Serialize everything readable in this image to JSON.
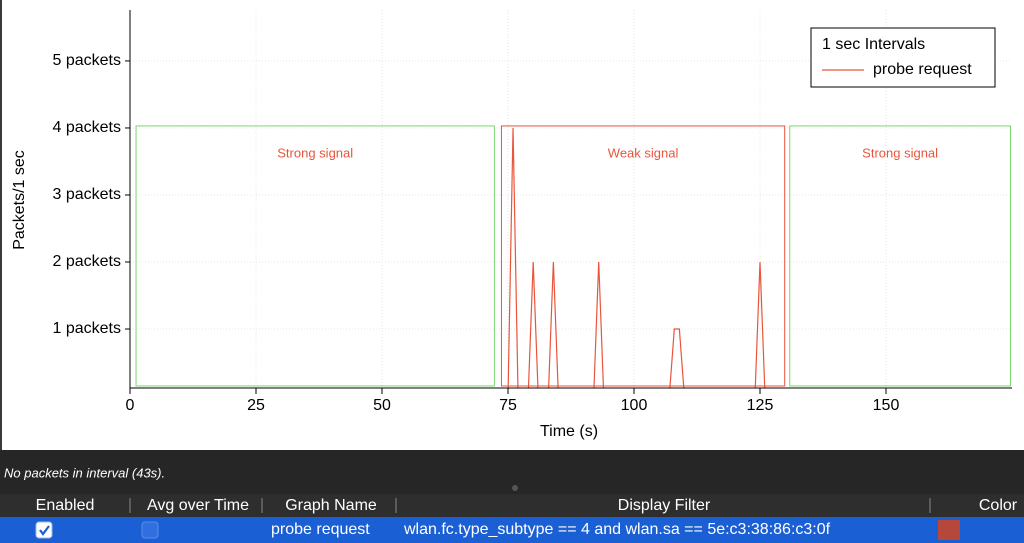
{
  "chart_data": {
    "type": "line",
    "x_label": "Time (s)",
    "y_label": "Packets/1 sec",
    "legend_title": "1 sec Intervals",
    "legend": "upper right",
    "x": [
      75,
      76,
      77,
      78,
      79,
      80,
      81,
      82,
      83,
      84,
      85,
      86,
      87,
      88,
      89,
      90,
      91,
      92,
      93,
      94,
      95,
      96,
      97,
      98,
      99,
      100,
      101,
      102,
      103,
      104,
      105,
      106,
      107,
      108,
      109,
      110,
      111,
      112,
      113,
      114,
      115,
      116,
      117,
      118,
      119,
      120,
      121,
      122,
      123,
      124,
      125,
      126,
      127,
      128,
      129,
      130
    ],
    "series": [
      {
        "name": "probe request",
        "color": "#e8553c",
        "values": [
          0,
          4,
          0,
          0,
          0,
          2,
          0,
          0,
          0,
          2,
          0,
          0,
          0,
          0,
          0,
          0,
          0,
          0,
          2,
          0,
          0,
          0,
          0,
          0,
          0,
          0,
          0,
          0,
          0,
          0,
          0,
          0,
          0,
          1,
          1,
          0,
          0,
          0,
          0,
          0,
          0,
          0,
          0,
          0,
          0,
          0,
          0,
          0,
          0,
          0,
          2,
          0,
          0,
          0,
          0,
          0
        ]
      }
    ],
    "xlim": [
      0,
      175
    ],
    "ylim": [
      0.12,
      5.76
    ],
    "xticks": [
      0,
      25,
      50,
      75,
      100,
      125,
      150
    ],
    "yticks": [
      {
        "value": 1,
        "label": "1 packets"
      },
      {
        "value": 2,
        "label": "2 packets"
      },
      {
        "value": 3,
        "label": "3 packets"
      },
      {
        "value": 4,
        "label": "4 packets"
      },
      {
        "value": 5,
        "label": "5 packets"
      }
    ],
    "grid": true,
    "regions": [
      {
        "text": "Strong signal",
        "x": [
          1.2,
          72.3
        ],
        "y": [
          0.15,
          4.03
        ],
        "color": "#7bd66f"
      },
      {
        "text": "Weak signal",
        "x": [
          73.7,
          129.9
        ],
        "y": [
          0.15,
          4.03
        ],
        "color": "#e8553c"
      },
      {
        "text": "Strong signal",
        "x": [
          130.9,
          174.7
        ],
        "y": [
          0.15,
          4.03
        ],
        "color": "#7bd66f"
      }
    ]
  },
  "status": "No packets in interval (43s).",
  "table": {
    "columns": [
      "Enabled",
      "Avg over Time",
      "Graph Name",
      "Display Filter",
      "Color"
    ],
    "rows": [
      {
        "enabled": true,
        "avg_over_time": false,
        "name": "probe request",
        "filter": "wlan.fc.type_subtype == 4 and wlan.sa == 5e:c3:38:86:c3:0f",
        "color": "#b5483a"
      }
    ]
  }
}
